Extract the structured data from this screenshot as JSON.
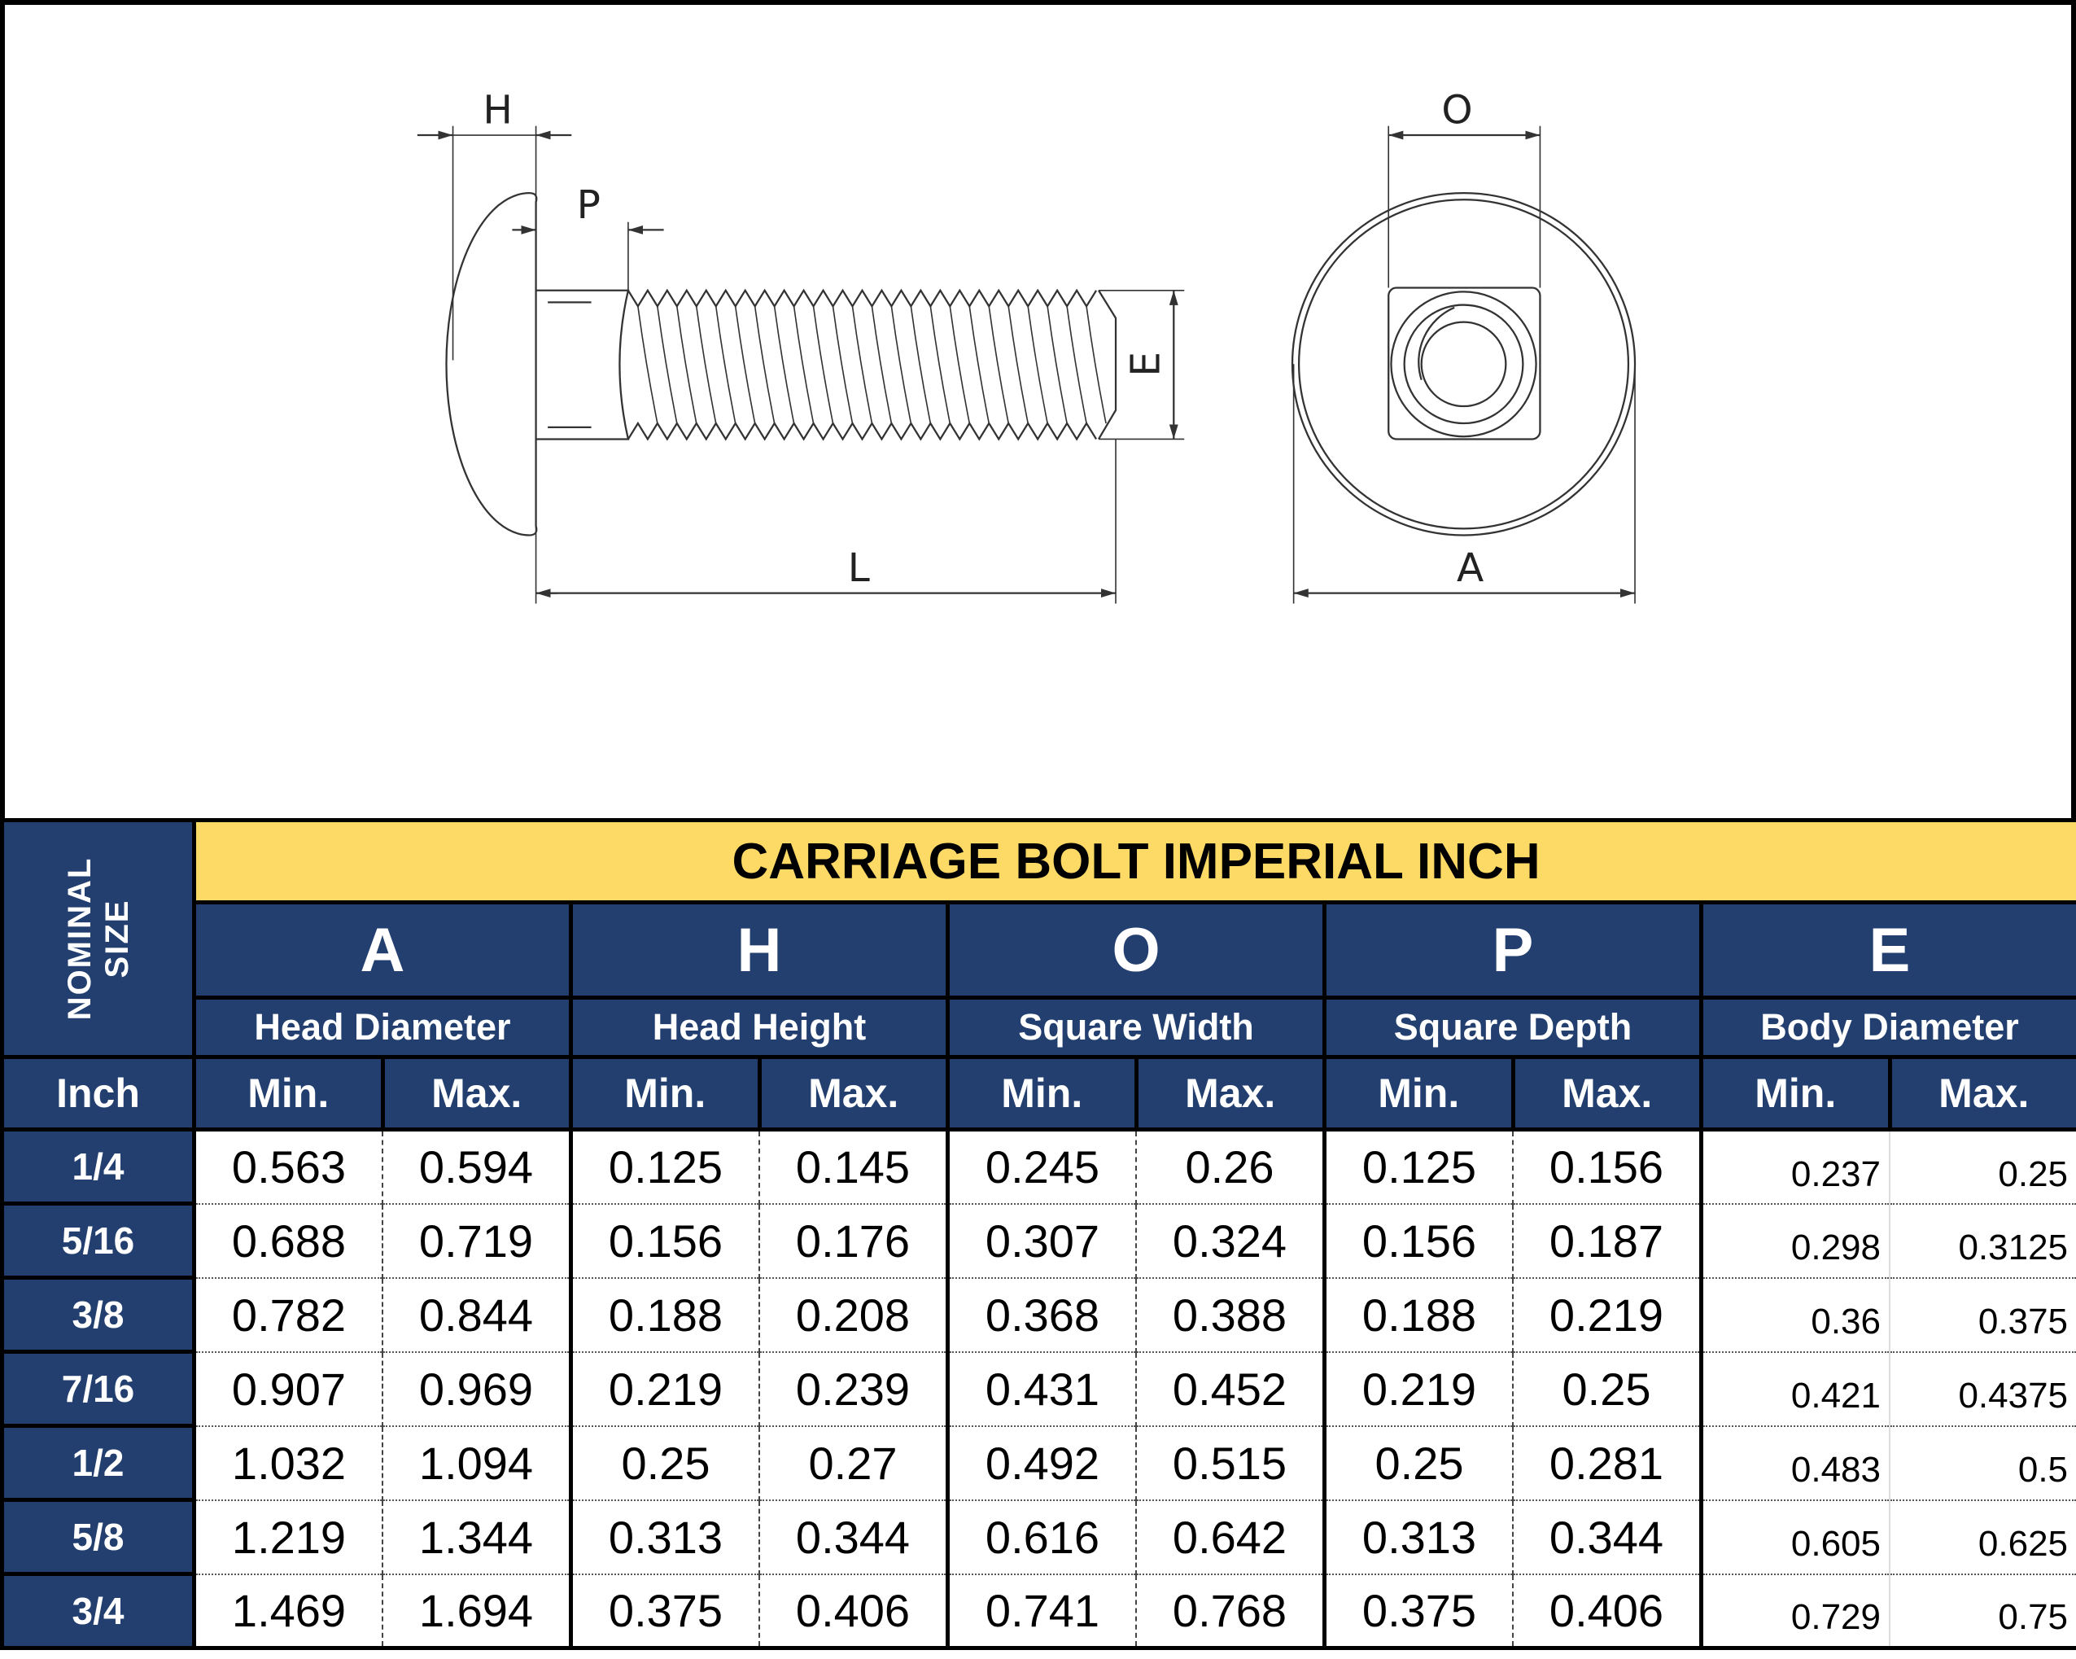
{
  "drawing": {
    "labels": {
      "H": "H",
      "P": "P",
      "E": "E",
      "L": "L",
      "O": "O",
      "A": "A"
    }
  },
  "table": {
    "title": "CARRIAGE BOLT IMPERIAL INCH",
    "nominal_label_line1": "NOMINAL",
    "nominal_label_line2": "SIZE",
    "unit_label": "Inch",
    "colors": {
      "header_bg": "#223f6f",
      "title_bg": "#fdd966"
    },
    "groups": [
      {
        "letter": "A",
        "description": "Head Diameter"
      },
      {
        "letter": "H",
        "description": "Head Height"
      },
      {
        "letter": "O",
        "description": "Square Width"
      },
      {
        "letter": "P",
        "description": "Square Depth"
      },
      {
        "letter": "E",
        "description": "Body Diameter"
      }
    ],
    "min_label": "Min.",
    "max_label": "Max.",
    "rows": [
      {
        "size": "1/4",
        "values": [
          "0.563",
          "0.594",
          "0.125",
          "0.145",
          "0.245",
          "0.26",
          "0.125",
          "0.156",
          "0.237",
          "0.25"
        ]
      },
      {
        "size": "5/16",
        "values": [
          "0.688",
          "0.719",
          "0.156",
          "0.176",
          "0.307",
          "0.324",
          "0.156",
          "0.187",
          "0.298",
          "0.3125"
        ]
      },
      {
        "size": "3/8",
        "values": [
          "0.782",
          "0.844",
          "0.188",
          "0.208",
          "0.368",
          "0.388",
          "0.188",
          "0.219",
          "0.36",
          "0.375"
        ]
      },
      {
        "size": "7/16",
        "values": [
          "0.907",
          "0.969",
          "0.219",
          "0.239",
          "0.431",
          "0.452",
          "0.219",
          "0.25",
          "0.421",
          "0.4375"
        ]
      },
      {
        "size": "1/2",
        "values": [
          "1.032",
          "1.094",
          "0.25",
          "0.27",
          "0.492",
          "0.515",
          "0.25",
          "0.281",
          "0.483",
          "0.5"
        ]
      },
      {
        "size": "5/8",
        "values": [
          "1.219",
          "1.344",
          "0.313",
          "0.344",
          "0.616",
          "0.642",
          "0.313",
          "0.344",
          "0.605",
          "0.625"
        ]
      },
      {
        "size": "3/4",
        "values": [
          "1.469",
          "1.694",
          "0.375",
          "0.406",
          "0.741",
          "0.768",
          "0.375",
          "0.406",
          "0.729",
          "0.75"
        ]
      }
    ]
  }
}
